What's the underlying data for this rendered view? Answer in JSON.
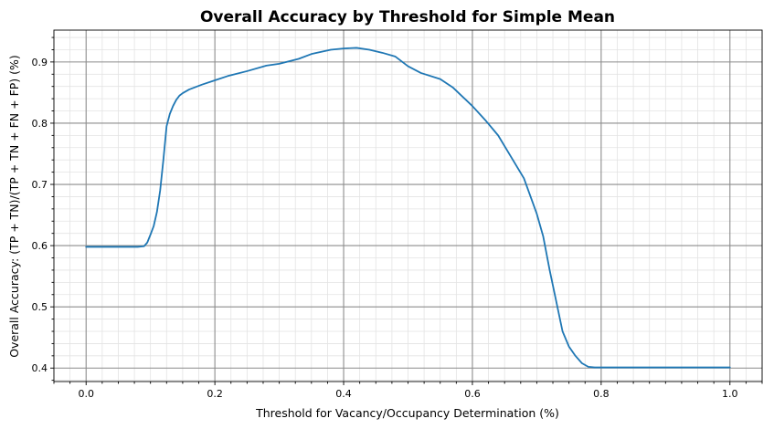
{
  "chart_data": {
    "type": "line",
    "title": "Overall Accuracy by Threshold for Simple Mean",
    "xlabel": "Threshold for Vacancy/Occupancy Determination (%)",
    "ylabel": "Overall Accuracy: (TP + TN)/(TP + TN + FN + FP) (%)",
    "xlim": [
      -0.05,
      1.05
    ],
    "ylim": [
      0.378,
      0.952
    ],
    "xticks": [
      0.0,
      0.2,
      0.4,
      0.6,
      0.8,
      1.0
    ],
    "xtick_labels": [
      "0.0",
      "0.2",
      "0.4",
      "0.6",
      "0.8",
      "1.0"
    ],
    "yticks": [
      0.4,
      0.5,
      0.6,
      0.7,
      0.8,
      0.9
    ],
    "ytick_labels": [
      "0.4",
      "0.5",
      "0.6",
      "0.7",
      "0.8",
      "0.9"
    ],
    "grid": "major and minor",
    "legend": "none",
    "series": [
      {
        "color": "#1f77b4",
        "x": [
          0.0,
          0.02,
          0.05,
          0.08,
          0.09,
          0.095,
          0.1,
          0.105,
          0.11,
          0.115,
          0.12,
          0.125,
          0.13,
          0.135,
          0.14,
          0.145,
          0.15,
          0.16,
          0.18,
          0.2,
          0.22,
          0.25,
          0.28,
          0.3,
          0.33,
          0.35,
          0.38,
          0.4,
          0.42,
          0.44,
          0.46,
          0.48,
          0.5,
          0.52,
          0.55,
          0.57,
          0.6,
          0.62,
          0.64,
          0.66,
          0.68,
          0.7,
          0.71,
          0.72,
          0.73,
          0.74,
          0.75,
          0.76,
          0.77,
          0.78,
          0.79,
          0.8,
          0.85,
          0.9,
          0.95,
          1.0
        ],
        "y": [
          0.598,
          0.598,
          0.598,
          0.598,
          0.599,
          0.605,
          0.618,
          0.632,
          0.655,
          0.69,
          0.74,
          0.795,
          0.815,
          0.828,
          0.838,
          0.845,
          0.849,
          0.855,
          0.863,
          0.87,
          0.877,
          0.885,
          0.894,
          0.897,
          0.905,
          0.913,
          0.92,
          0.922,
          0.923,
          0.92,
          0.915,
          0.909,
          0.893,
          0.882,
          0.872,
          0.858,
          0.828,
          0.805,
          0.78,
          0.745,
          0.71,
          0.652,
          0.615,
          0.56,
          0.51,
          0.46,
          0.435,
          0.42,
          0.408,
          0.402,
          0.401,
          0.401,
          0.401,
          0.401,
          0.401,
          0.401
        ]
      }
    ]
  }
}
